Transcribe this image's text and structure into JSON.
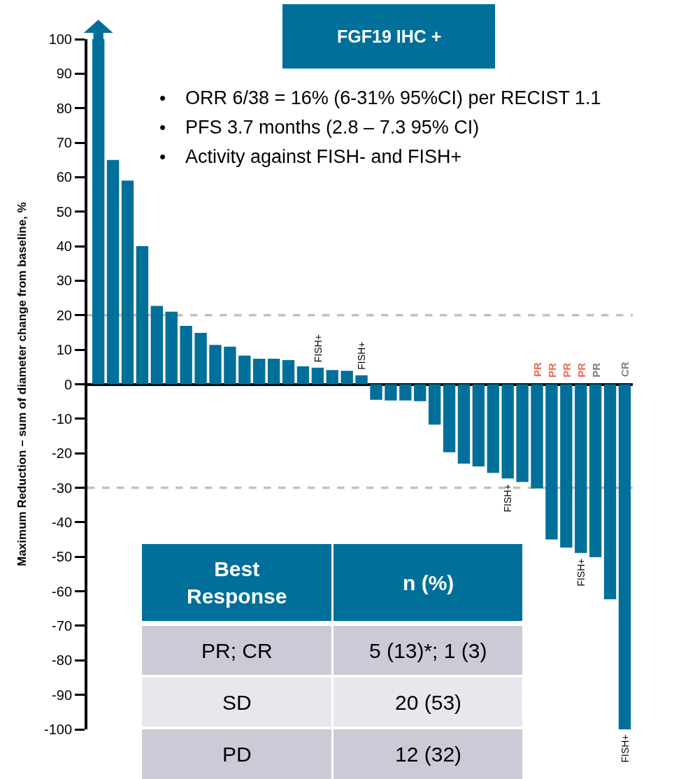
{
  "chart_data": {
    "type": "bar",
    "title": "FGF19 IHC +",
    "ylabel": "Maximum Reduction – sum of diameter change from baseline, %",
    "categories": [
      null,
      null,
      null,
      null,
      null,
      null,
      null,
      null,
      null,
      null,
      null,
      null,
      null,
      null,
      null,
      null,
      null,
      null,
      null,
      null,
      null,
      null,
      null,
      null,
      null,
      null,
      null,
      null,
      null,
      null,
      null,
      null,
      null,
      null,
      null,
      null,
      null
    ],
    "values": [
      100,
      65,
      59,
      40,
      22.7,
      21,
      16.9,
      14.9,
      11.4,
      10.9,
      8.3,
      7.4,
      7.4,
      7,
      5.2,
      4.8,
      4.1,
      3.9,
      2.6,
      -4.5,
      -4.7,
      -4.7,
      -4.9,
      -11.7,
      -19.7,
      -23,
      -23.8,
      -25.7,
      -27.3,
      -28.3,
      -30.2,
      -45,
      -47.3,
      -48.9,
      -50.1,
      -62.3,
      -100
    ],
    "color": "#006f99",
    "ylim": [
      -100,
      100
    ],
    "yticks": [
      -100,
      -90,
      -80,
      -70,
      -60,
      -50,
      -40,
      -30,
      -20,
      -10,
      0,
      10,
      20,
      30,
      40,
      50,
      60,
      70,
      80,
      90,
      100
    ],
    "ref_lines": [
      {
        "axis": "y",
        "value": 20,
        "color": "#c8c0b6",
        "line_style": "dashed"
      },
      {
        "axis": "y",
        "value": -30,
        "color": "#c8c0b6",
        "line_style": "dashed"
      }
    ],
    "grid": false,
    "annotations": [
      "• ORR 6/38 = 16% (6-31% 95%CI) per RECIST 1.1",
      "• PFS 3.7 months (2.8 – 7.3 95% CI)",
      "• Activity against FISH- and FISH+",
      "Best Response",
      "n (%)",
      "PR; CR",
      "5 (13)*; 1 (3)",
      "SD",
      "20 (53)",
      "PD",
      "12 (32)",
      "FISH+",
      "FISH+",
      "FISH+",
      "FISH+",
      "FISH+",
      "PR",
      "PR",
      "PR",
      "PR",
      "PR",
      "CR"
    ]
  }
}
